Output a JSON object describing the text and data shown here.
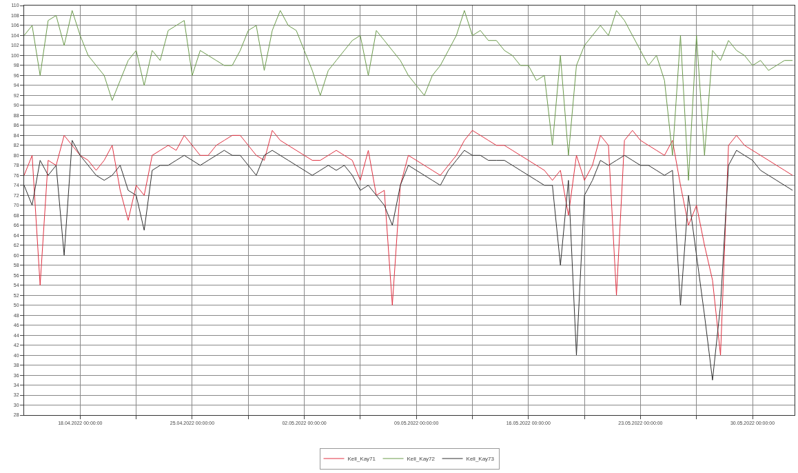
{
  "chart_data": {
    "type": "line",
    "legend": "bottom",
    "grid": true,
    "marker": "none",
    "line_style": "solid",
    "xlim": [
      "2022-04-14T12:00",
      "2022-06-01T15:00"
    ],
    "ylim": [
      28,
      110
    ],
    "yticks": [
      28,
      30,
      32,
      34,
      36,
      38,
      40,
      42,
      44,
      46,
      48,
      50,
      52,
      54,
      56,
      58,
      60,
      62,
      64,
      66,
      68,
      70,
      72,
      74,
      76,
      78,
      80,
      82,
      84,
      86,
      88,
      90,
      92,
      94,
      96,
      98,
      100,
      102,
      104,
      106,
      108,
      110
    ],
    "xticks": [
      {
        "value": "2022-04-18T00:00",
        "label": "18.04.2022 00:00:00"
      },
      {
        "value": "2022-04-21T12:00",
        "label": null
      },
      {
        "value": "2022-04-25T00:00",
        "label": "25.04.2022 00:00:00"
      },
      {
        "value": "2022-04-28T12:00",
        "label": null
      },
      {
        "value": "2022-05-02T00:00",
        "label": "02.05.2022 00:00:00"
      },
      {
        "value": "2022-05-05T12:00",
        "label": null
      },
      {
        "value": "2022-05-09T00:00",
        "label": "09.05.2022 00:00:00"
      },
      {
        "value": "2022-05-12T12:00",
        "label": null
      },
      {
        "value": "2022-05-16T00:00",
        "label": "16.05.2022 00:00:00"
      },
      {
        "value": "2022-05-19T12:00",
        "label": null
      },
      {
        "value": "2022-05-23T00:00",
        "label": "23.05.2022 00:00:00"
      },
      {
        "value": "2022-05-26T12:00",
        "label": null
      },
      {
        "value": "2022-05-30T00:00",
        "label": "30.05.2022 00:00:00"
      }
    ],
    "x": [
      "2022-04-14T12:00",
      "2022-04-15T00:00",
      "2022-04-15T12:00",
      "2022-04-16T00:00",
      "2022-04-16T12:00",
      "2022-04-17T00:00",
      "2022-04-17T12:00",
      "2022-04-18T00:00",
      "2022-04-18T12:00",
      "2022-04-19T00:00",
      "2022-04-19T12:00",
      "2022-04-20T00:00",
      "2022-04-20T12:00",
      "2022-04-21T00:00",
      "2022-04-21T12:00",
      "2022-04-22T00:00",
      "2022-04-22T12:00",
      "2022-04-23T00:00",
      "2022-04-23T12:00",
      "2022-04-24T00:00",
      "2022-04-24T12:00",
      "2022-04-25T00:00",
      "2022-04-25T12:00",
      "2022-04-26T00:00",
      "2022-04-26T12:00",
      "2022-04-27T00:00",
      "2022-04-27T12:00",
      "2022-04-28T00:00",
      "2022-04-28T12:00",
      "2022-04-29T00:00",
      "2022-04-29T12:00",
      "2022-04-30T00:00",
      "2022-04-30T12:00",
      "2022-05-01T00:00",
      "2022-05-01T12:00",
      "2022-05-02T00:00",
      "2022-05-02T12:00",
      "2022-05-03T00:00",
      "2022-05-03T12:00",
      "2022-05-04T00:00",
      "2022-05-04T12:00",
      "2022-05-05T00:00",
      "2022-05-05T12:00",
      "2022-05-06T00:00",
      "2022-05-06T12:00",
      "2022-05-07T00:00",
      "2022-05-07T12:00",
      "2022-05-08T00:00",
      "2022-05-08T12:00",
      "2022-05-09T00:00",
      "2022-05-09T12:00",
      "2022-05-10T00:00",
      "2022-05-10T12:00",
      "2022-05-11T00:00",
      "2022-05-11T12:00",
      "2022-05-12T00:00",
      "2022-05-12T12:00",
      "2022-05-13T00:00",
      "2022-05-13T12:00",
      "2022-05-14T00:00",
      "2022-05-14T12:00",
      "2022-05-15T00:00",
      "2022-05-15T12:00",
      "2022-05-16T00:00",
      "2022-05-16T12:00",
      "2022-05-17T00:00",
      "2022-05-17T12:00",
      "2022-05-18T00:00",
      "2022-05-18T12:00",
      "2022-05-19T00:00",
      "2022-05-19T12:00",
      "2022-05-20T00:00",
      "2022-05-20T12:00",
      "2022-05-21T00:00",
      "2022-05-21T12:00",
      "2022-05-22T00:00",
      "2022-05-22T12:00",
      "2022-05-23T00:00",
      "2022-05-23T12:00",
      "2022-05-24T00:00",
      "2022-05-24T12:00",
      "2022-05-25T00:00",
      "2022-05-25T12:00",
      "2022-05-26T00:00",
      "2022-05-26T12:00",
      "2022-05-27T00:00",
      "2022-05-27T12:00",
      "2022-05-28T00:00",
      "2022-05-28T12:00",
      "2022-05-29T00:00",
      "2022-05-29T12:00",
      "2022-05-30T00:00",
      "2022-05-30T12:00",
      "2022-05-31T00:00",
      "2022-05-31T12:00",
      "2022-06-01T00:00",
      "2022-06-01T12:00"
    ],
    "series": [
      {
        "name": "Kell_Kay71",
        "color": "#e03040",
        "values": [
          76,
          80,
          54,
          79,
          78,
          84,
          82,
          80,
          79,
          77,
          79,
          82,
          73,
          67,
          74,
          72,
          80,
          81,
          82,
          81,
          84,
          82,
          80,
          80,
          82,
          83,
          84,
          84,
          82,
          80,
          79,
          85,
          83,
          82,
          81,
          80,
          79,
          79,
          80,
          81,
          80,
          79,
          75,
          81,
          72,
          73,
          50,
          74,
          80,
          79,
          78,
          77,
          76,
          78,
          80,
          83,
          85,
          84,
          83,
          82,
          82,
          81,
          80,
          79,
          78,
          77,
          75,
          77,
          68,
          80,
          75,
          78,
          84,
          82,
          52,
          83,
          85,
          83,
          82,
          81,
          80,
          83,
          74,
          66,
          70,
          62,
          55,
          40,
          82,
          84,
          82,
          81,
          80,
          79,
          78,
          77,
          76
        ]
      },
      {
        "name": "Kell_Kay72",
        "color": "#6a9a4a",
        "values": [
          104,
          106,
          96,
          107,
          108,
          102,
          109,
          104,
          100,
          98,
          96,
          91,
          95,
          99,
          101,
          94,
          101,
          99,
          105,
          106,
          107,
          96,
          101,
          100,
          99,
          98,
          98,
          101,
          105,
          106,
          97,
          105,
          109,
          106,
          105,
          101,
          97,
          92,
          97,
          99,
          101,
          103,
          104,
          96,
          105,
          103,
          101,
          99,
          96,
          94,
          92,
          96,
          98,
          101,
          104,
          109,
          104,
          105,
          103,
          103,
          101,
          100,
          98,
          98,
          95,
          96,
          82,
          100,
          80,
          98,
          102,
          104,
          106,
          104,
          109,
          107,
          104,
          101,
          98,
          100,
          95,
          80,
          104,
          75,
          104,
          80,
          101,
          99,
          103,
          101,
          100,
          98,
          99,
          97,
          98,
          99,
          99
        ]
      },
      {
        "name": "Kell_Kay73",
        "color": "#303030",
        "values": [
          74,
          70,
          79,
          76,
          78,
          60,
          83,
          80,
          78,
          76,
          75,
          76,
          78,
          73,
          72,
          65,
          77,
          78,
          78,
          79,
          80,
          79,
          78,
          79,
          80,
          81,
          80,
          80,
          78,
          76,
          80,
          81,
          80,
          79,
          78,
          77,
          76,
          77,
          78,
          77,
          78,
          76,
          73,
          74,
          72,
          70,
          66,
          74,
          78,
          77,
          76,
          75,
          74,
          77,
          79,
          81,
          80,
          80,
          79,
          79,
          79,
          78,
          77,
          76,
          75,
          74,
          74,
          58,
          75,
          40,
          72,
          75,
          79,
          78,
          79,
          80,
          79,
          78,
          78,
          77,
          76,
          77,
          50,
          72,
          60,
          48,
          35,
          50,
          78,
          81,
          80,
          79,
          77,
          76,
          75,
          74,
          73
        ]
      }
    ]
  }
}
